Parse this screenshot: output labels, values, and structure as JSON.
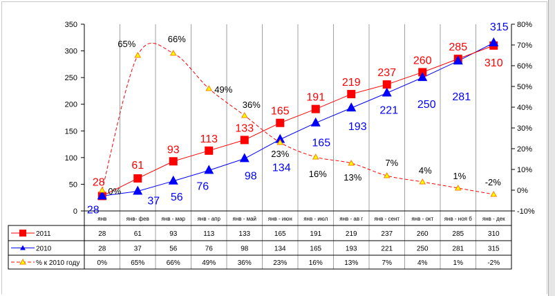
{
  "chart_data": {
    "type": "line",
    "categories": [
      "янв",
      "янв- фев",
      "янв - мар",
      "янв - апр",
      "янв - май",
      "янв - июн",
      "янв - июл",
      "янв - ав г",
      "янв - сент",
      "янв - окт",
      "янв - ноя б",
      "янв - дек"
    ],
    "series": [
      {
        "name": "2011",
        "axis": "left",
        "color": "#ff0000",
        "marker": "square",
        "values": [
          28,
          61,
          93,
          113,
          133,
          165,
          191,
          219,
          237,
          260,
          285,
          310
        ]
      },
      {
        "name": "2010",
        "axis": "left",
        "color": "#0000ff",
        "marker": "triangle",
        "values": [
          28,
          37,
          56,
          76,
          98,
          134,
          165,
          193,
          221,
          250,
          281,
          315
        ]
      },
      {
        "name": "% к 2010 году",
        "axis": "right",
        "color": "#ff0000",
        "marker": "triangle-open",
        "dashed": true,
        "values": [
          0,
          65,
          66,
          49,
          36,
          23,
          16,
          13,
          7,
          4,
          1,
          -2
        ],
        "labels": [
          "0%",
          "65%",
          "66%",
          "49%",
          "36%",
          "23%",
          "16%",
          "13%",
          "7%",
          "4%",
          "1%",
          "-2%"
        ]
      }
    ],
    "left_axis": {
      "ylim": [
        0,
        350
      ],
      "ticks": [
        "0",
        "50",
        "100",
        "150",
        "200",
        "250",
        "300",
        "350"
      ]
    },
    "right_axis": {
      "ylim": [
        -10,
        80
      ],
      "ticks": [
        "-10%",
        "0%",
        "10%",
        "20%",
        "30%",
        "40%",
        "50%",
        "60%",
        "70%",
        "80%"
      ]
    },
    "legend": "data-table-bottom",
    "grid": "vertical"
  }
}
